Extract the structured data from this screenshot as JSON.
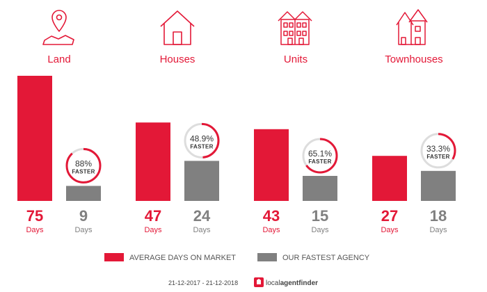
{
  "chart_data": {
    "type": "bar",
    "categories": [
      "Land",
      "Houses",
      "Units",
      "Townhouses"
    ],
    "series": [
      {
        "name": "AVERAGE DAYS ON MARKET",
        "values": [
          75,
          47,
          43,
          27
        ]
      },
      {
        "name": "OUR FASTEST AGENCY",
        "values": [
          9,
          24,
          15,
          18
        ]
      }
    ],
    "faster": [
      "88%",
      "48.9%",
      "65.1%",
      "33.3%"
    ],
    "faster_fraction": [
      0.88,
      0.489,
      0.651,
      0.333
    ],
    "faster_word": "FASTER",
    "unit": "Days",
    "ylim": [
      0,
      75
    ],
    "icons": [
      "map-pin-icon",
      "house-icon",
      "units-icon",
      "townhouses-icon"
    ]
  },
  "colors": {
    "market": "#e31837",
    "agency": "#808080",
    "ring_bg": "#dddddd"
  },
  "footer": {
    "date_range": "21-12-2017 - 21-12-2018",
    "brand_local": "local",
    "brand_agent": "agentfinder"
  }
}
